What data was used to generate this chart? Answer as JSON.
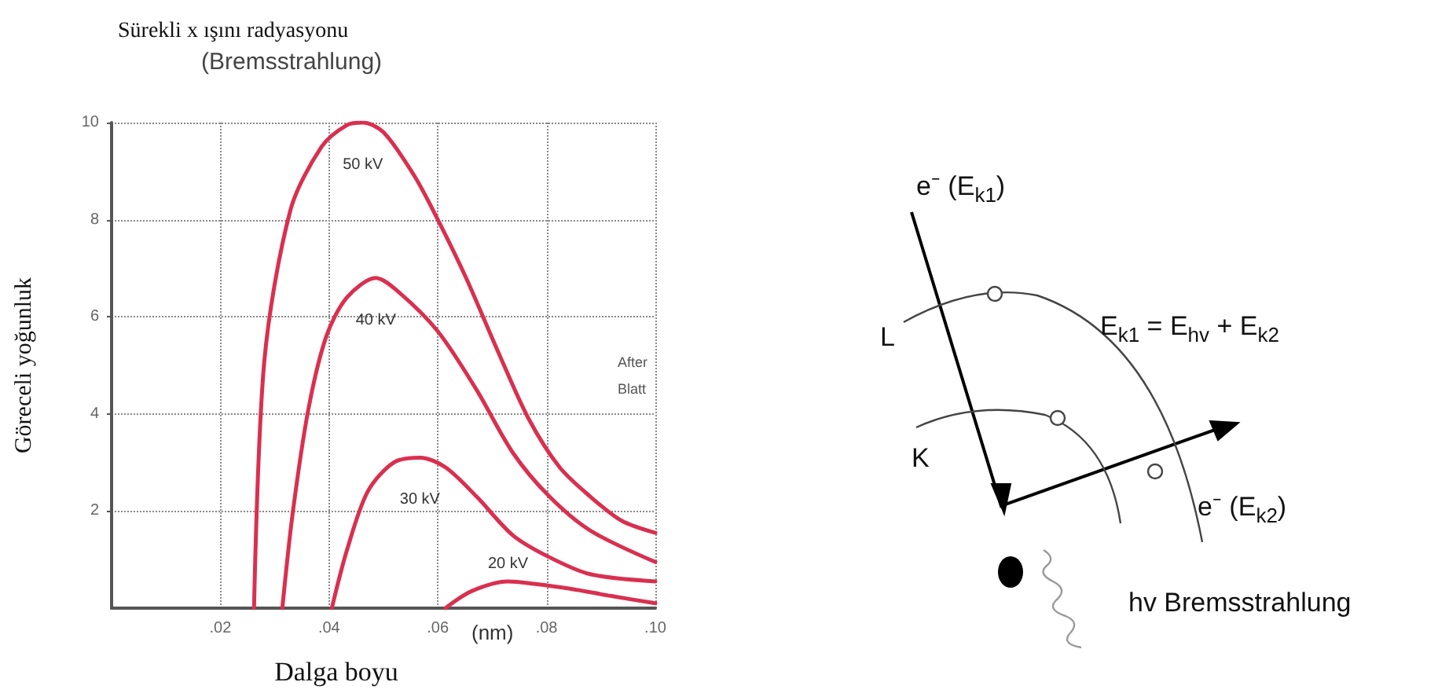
{
  "chart_data": {
    "type": "line",
    "title": "Sürekli x ışını radyasyonu",
    "subtitle": "(Bremsstrahlung)",
    "xlabel": "Dalga boyu",
    "ylabel": "Göreceli yoğunluk",
    "annotations": [
      "(nm)",
      "After\nBlatt",
      "e⁻ (E$_{k1}$)",
      "L",
      "E$_{k1}$ = E$_{hv}$ + E$_{k2}$",
      "K",
      "e⁻ (E$_{k2}$)",
      "hv Bremsstrahlung"
    ],
    "xlim": [
      0,
      0.1
    ],
    "xticks": [
      {
        "value": 0.02,
        "label": ".02"
      },
      {
        "value": 0.04,
        "label": ".04"
      },
      {
        "value": 0.06,
        "label": ".06"
      },
      {
        "value": 0.08,
        "label": ".08"
      },
      {
        "value": 0.1,
        "label": ".10"
      }
    ],
    "ylim": [
      0,
      10
    ],
    "yticks": [
      2,
      4,
      6,
      8,
      10
    ],
    "grid": true,
    "legend": false,
    "marker": "none",
    "line_style": "solid",
    "series": [
      {
        "name": "50 kV",
        "color": "#d9304f",
        "x": [
          0.0262,
          0.0281,
          0.0329,
          0.0386,
          0.0433,
          0.0462,
          0.05,
          0.0557,
          0.06,
          0.0652,
          0.071,
          0.0767,
          0.0824,
          0.088,
          0.0938,
          0.1
        ],
        "values": [
          0,
          5.1,
          8.2,
          9.5,
          9.95,
          10,
          9.8,
          8.9,
          8.0,
          6.8,
          5.3,
          3.9,
          2.9,
          2.3,
          1.8,
          1.55
        ]
      },
      {
        "name": "40 kV",
        "color": "#d9304f",
        "x": [
          0.0314,
          0.0333,
          0.0362,
          0.0395,
          0.0433,
          0.0486,
          0.0529,
          0.06,
          0.0671,
          0.0738,
          0.0805,
          0.088,
          0.1
        ],
        "values": [
          0,
          1.95,
          4.1,
          5.6,
          6.4,
          6.8,
          6.5,
          5.7,
          4.5,
          3.2,
          2.3,
          1.6,
          0.95
        ]
      },
      {
        "name": "30 kV",
        "color": "#d9304f",
        "x": [
          0.0405,
          0.0433,
          0.0471,
          0.0519,
          0.0567,
          0.0614,
          0.0671,
          0.0738,
          0.0805,
          0.088,
          0.1
        ],
        "values": [
          0,
          1.2,
          2.4,
          3.0,
          3.1,
          2.9,
          2.3,
          1.5,
          1.05,
          0.7,
          0.55
        ]
      },
      {
        "name": "20 kV",
        "color": "#d9304f",
        "x": [
          0.0614,
          0.0662,
          0.0729,
          0.0776,
          0.0843,
          0.0919,
          0.1
        ],
        "values": [
          0,
          0.35,
          0.55,
          0.5,
          0.4,
          0.25,
          0.1
        ]
      }
    ]
  }
}
